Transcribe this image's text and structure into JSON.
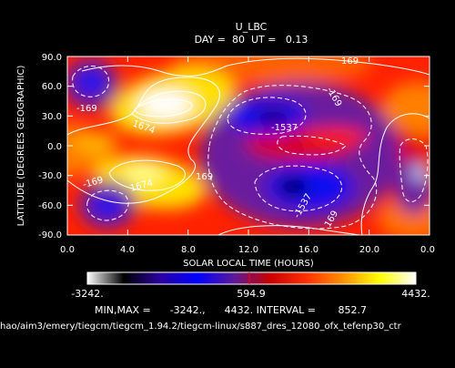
{
  "chart_data": {
    "type": "heatmap",
    "title": "U_LBC",
    "subtitle": "DAY =  80  UT =   0.13",
    "xlabel": "SOLAR LOCAL TIME (HOURS)",
    "ylabel": "LATITUDE (DEGREES GEOGRAPHIC)",
    "xlim": [
      0,
      24
    ],
    "ylim": [
      -90,
      90
    ],
    "x_ticks": [
      "0.0",
      "4.0",
      "8.0",
      "12.0",
      "16.0",
      "20.0",
      "0.0"
    ],
    "y_ticks": [
      "90.0",
      "60.0",
      "30.0",
      "0.0",
      "-30.0",
      "-60.0",
      "-90.0"
    ],
    "colorbar": {
      "min_label": "-3242.",
      "mid_label": "594.9",
      "max_label": "4432.",
      "min": -3242,
      "max": 4432,
      "colors": [
        "#ffffff",
        "#000000",
        "#2a00a0",
        "#0000ff",
        "#5a1a9a",
        "#c80000",
        "#ff3000",
        "#ff9000",
        "#ffff00",
        "#ffffff"
      ]
    },
    "min_max_line": "MIN,MAX =      -3242.,      4432. INTERVAL =       852.7",
    "contour_labels": [
      "-169",
      "169",
      "-169",
      "1674",
      "-1537",
      "169",
      "-169",
      "1674",
      "-1537",
      "169"
    ],
    "path_text": "hao/aim3/emery/tiegcm/tiegcm_1.94.2/tiegcm-linux/s887_dres_12080_ofx_tefenp30_ctr"
  }
}
